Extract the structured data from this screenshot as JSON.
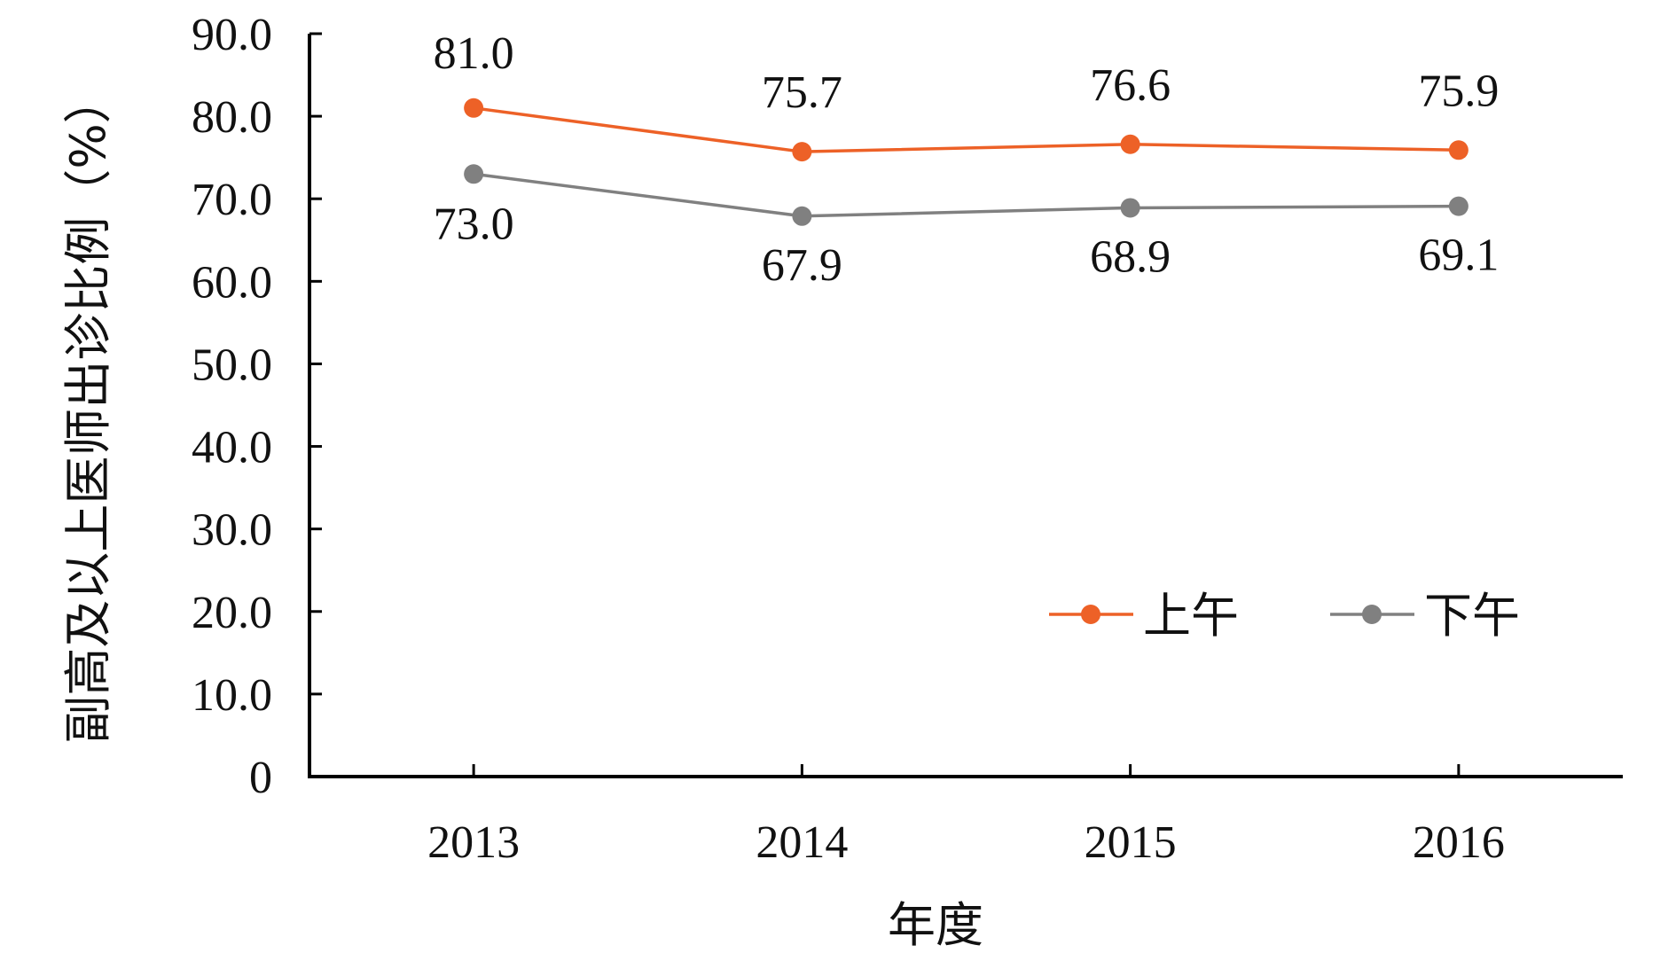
{
  "chart_data": {
    "type": "line",
    "categories": [
      "2013",
      "2014",
      "2015",
      "2016"
    ],
    "series": [
      {
        "name": "上午",
        "values": [
          81.0,
          75.7,
          76.6,
          75.9
        ],
        "color": "#ED6127"
      },
      {
        "name": "下午",
        "values": [
          73.0,
          67.9,
          68.9,
          69.1
        ],
        "color": "#808080"
      }
    ],
    "value_labels": [
      [
        "81.0",
        "75.7",
        "76.6",
        "75.9"
      ],
      [
        "73.0",
        "67.9",
        "68.9",
        "69.1"
      ]
    ],
    "xlabel": "年度",
    "ylabel": "副高及以上医师出诊比例（%）",
    "ylim": [
      0,
      90
    ],
    "yticks": [
      0,
      10,
      20,
      30,
      40,
      50,
      60,
      70,
      80,
      90
    ],
    "ytick_labels": [
      "0",
      "10.0",
      "20.0",
      "30.0",
      "40.0",
      "50.0",
      "60.0",
      "70.0",
      "80.0",
      "90.0"
    ],
    "grid": false,
    "legend_position": "lower-right",
    "label_placement": [
      "above",
      "below"
    ]
  }
}
